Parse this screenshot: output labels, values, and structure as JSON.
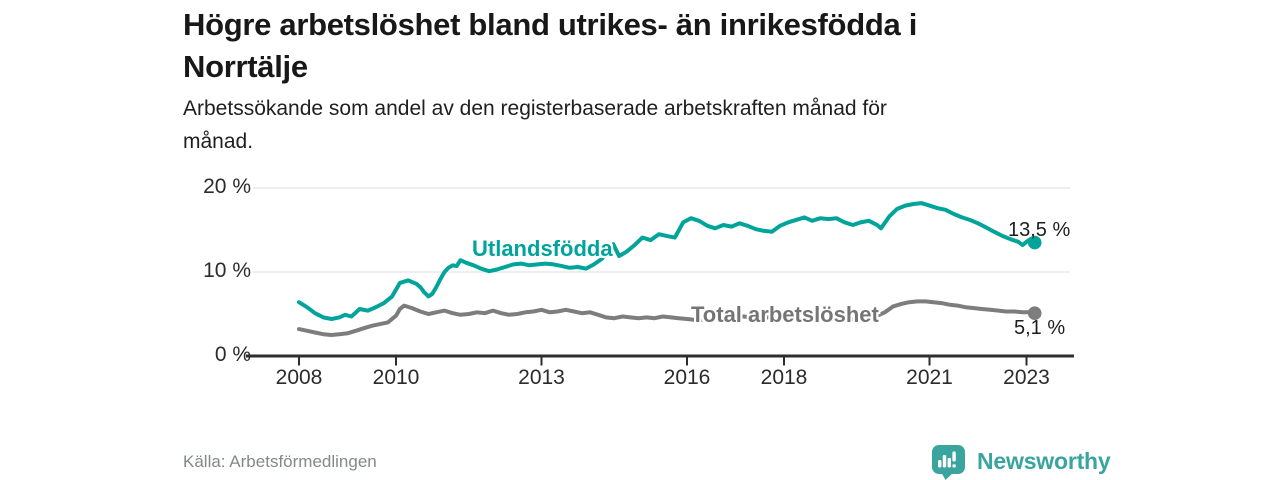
{
  "header": {
    "title_lines": [
      "Högre arbetslöshet bland utrikes- än inrikesfödda i",
      "Norrtälje"
    ],
    "subtitle_lines": [
      "Arbetssökande som andel av den registerbaserade arbetskraften månad för",
      "månad."
    ]
  },
  "chart_data": {
    "type": "line",
    "title": "Högre arbetslöshet bland utrikes- än inrikesfödda i Norrtälje",
    "subtitle": "Arbetssökande som andel av den registerbaserade arbetskraften månad för månad.",
    "unit": "%",
    "ylim": [
      0,
      20
    ],
    "xlim": [
      2007.6,
      2023.9
    ],
    "grid": "horizontal-light",
    "legend_position": "inline-labels",
    "yticks": [
      {
        "value": 0,
        "label": "0 %"
      },
      {
        "value": 10,
        "label": "10 %"
      },
      {
        "value": 20,
        "label": "20 %"
      }
    ],
    "xticks": [
      {
        "value": 2008,
        "label": "2008"
      },
      {
        "value": 2010,
        "label": "2010"
      },
      {
        "value": 2013,
        "label": "2013"
      },
      {
        "value": 2016,
        "label": "2016"
      },
      {
        "value": 2018,
        "label": "2018"
      },
      {
        "value": 2021,
        "label": "2021"
      },
      {
        "value": 2023,
        "label": "2023"
      }
    ],
    "colors": {
      "grid": "#dcdcdc",
      "axis": "#2e2e2e",
      "tick_text": "#2b2b2b",
      "value_text": "#1d1d1d"
    },
    "series": [
      {
        "name": "Utlandsfödda",
        "color": "#00a49a",
        "end_label": "13,5 %",
        "end_value": 13.5,
        "x": [
          2008.0,
          2008.17,
          2008.33,
          2008.5,
          2008.67,
          2008.83,
          2008.95,
          2009.08,
          2009.25,
          2009.42,
          2009.58,
          2009.75,
          2009.92,
          2010.08,
          2010.25,
          2010.42,
          2010.5,
          2010.58,
          2010.67,
          2010.75,
          2010.83,
          2010.92,
          2011.0,
          2011.08,
          2011.17,
          2011.25,
          2011.33,
          2011.45,
          2011.6,
          2011.75,
          2011.92,
          2012.08,
          2012.25,
          2012.42,
          2012.58,
          2012.75,
          2012.92,
          2013.08,
          2013.25,
          2013.42,
          2013.58,
          2013.75,
          2013.92,
          2014.08,
          2014.25,
          2014.38,
          2014.48,
          2014.6,
          2014.75,
          2014.92,
          2015.08,
          2015.25,
          2015.42,
          2015.58,
          2015.75,
          2015.92,
          2016.08,
          2016.25,
          2016.42,
          2016.58,
          2016.75,
          2016.92,
          2017.08,
          2017.25,
          2017.42,
          2017.58,
          2017.75,
          2017.92,
          2018.08,
          2018.25,
          2018.42,
          2018.58,
          2018.75,
          2018.92,
          2019.08,
          2019.25,
          2019.42,
          2019.58,
          2019.75,
          2019.92,
          2020.0,
          2020.17,
          2020.33,
          2020.5,
          2020.67,
          2020.83,
          2021.0,
          2021.17,
          2021.33,
          2021.5,
          2021.67,
          2021.83,
          2022.0,
          2022.17,
          2022.33,
          2022.5,
          2022.67,
          2022.83,
          2022.92,
          2023.0,
          2023.08,
          2023.17
        ],
        "values": [
          6.4,
          5.8,
          5.1,
          4.6,
          4.4,
          4.6,
          4.9,
          4.7,
          5.6,
          5.4,
          5.8,
          6.3,
          7.1,
          8.7,
          9.0,
          8.6,
          8.2,
          7.6,
          7.1,
          7.4,
          8.2,
          9.2,
          10.0,
          10.5,
          10.8,
          10.7,
          11.4,
          11.1,
          10.8,
          10.4,
          10.1,
          10.3,
          10.6,
          10.9,
          11.0,
          10.8,
          10.9,
          11.0,
          10.9,
          10.7,
          10.5,
          10.6,
          10.4,
          10.9,
          11.6,
          12.7,
          13.3,
          11.9,
          12.4,
          13.2,
          14.1,
          13.8,
          14.5,
          14.3,
          14.1,
          15.9,
          16.4,
          16.1,
          15.5,
          15.2,
          15.6,
          15.4,
          15.8,
          15.5,
          15.1,
          14.9,
          14.8,
          15.5,
          15.9,
          16.2,
          16.5,
          16.1,
          16.4,
          16.3,
          16.4,
          15.9,
          15.6,
          15.9,
          16.1,
          15.6,
          15.2,
          16.6,
          17.5,
          17.9,
          18.1,
          18.2,
          17.9,
          17.6,
          17.4,
          16.9,
          16.5,
          16.2,
          15.8,
          15.3,
          14.8,
          14.3,
          13.9,
          13.6,
          13.2,
          13.6,
          13.9,
          13.5
        ]
      },
      {
        "name": "Total arbetslöshet",
        "color": "#7d7d7d",
        "end_label": "5,1 %",
        "end_value": 5.1,
        "x": [
          2008.0,
          2008.17,
          2008.33,
          2008.5,
          2008.67,
          2008.83,
          2009.0,
          2009.17,
          2009.33,
          2009.5,
          2009.67,
          2009.83,
          2010.0,
          2010.08,
          2010.17,
          2010.33,
          2010.5,
          2010.67,
          2010.83,
          2011.0,
          2011.17,
          2011.33,
          2011.5,
          2011.67,
          2011.83,
          2012.0,
          2012.17,
          2012.33,
          2012.5,
          2012.67,
          2012.83,
          2013.0,
          2013.17,
          2013.33,
          2013.5,
          2013.67,
          2013.83,
          2014.0,
          2014.17,
          2014.33,
          2014.5,
          2014.67,
          2014.83,
          2015.0,
          2015.17,
          2015.33,
          2015.5,
          2015.67,
          2015.83,
          2016.0,
          2016.17,
          2016.33,
          2016.5,
          2016.67,
          2016.83,
          2017.0,
          2017.17,
          2017.33,
          2017.5,
          2017.67,
          2017.83,
          2018.0,
          2018.25,
          2018.5,
          2018.75,
          2019.0,
          2019.25,
          2019.5,
          2019.75,
          2019.92,
          2020.08,
          2020.25,
          2020.42,
          2020.58,
          2020.75,
          2020.92,
          2021.08,
          2021.25,
          2021.42,
          2021.58,
          2021.75,
          2021.92,
          2022.08,
          2022.25,
          2022.42,
          2022.58,
          2022.75,
          2022.92,
          2023.08,
          2023.17
        ],
        "values": [
          3.2,
          3.0,
          2.8,
          2.6,
          2.5,
          2.6,
          2.7,
          3.0,
          3.3,
          3.6,
          3.8,
          4.0,
          4.8,
          5.6,
          6.0,
          5.7,
          5.3,
          5.0,
          5.2,
          5.4,
          5.1,
          4.9,
          5.0,
          5.2,
          5.1,
          5.4,
          5.1,
          4.9,
          5.0,
          5.2,
          5.3,
          5.5,
          5.2,
          5.3,
          5.5,
          5.3,
          5.1,
          5.2,
          4.9,
          4.6,
          4.5,
          4.7,
          4.6,
          4.5,
          4.6,
          4.5,
          4.7,
          4.6,
          4.5,
          4.4,
          4.3,
          4.3,
          4.5,
          4.7,
          4.6,
          4.8,
          4.7,
          4.6,
          4.5,
          4.6,
          4.7,
          4.6,
          4.5,
          4.4,
          4.5,
          4.4,
          4.3,
          4.4,
          4.6,
          4.8,
          5.2,
          5.9,
          6.2,
          6.4,
          6.5,
          6.5,
          6.4,
          6.3,
          6.1,
          6.0,
          5.8,
          5.7,
          5.6,
          5.5,
          5.4,
          5.3,
          5.3,
          5.2,
          5.2,
          5.1
        ]
      }
    ]
  },
  "footer": {
    "source": "Källa: Arbetsförmedlingen",
    "brand": "Newsworthy",
    "brand_color": "#3aa49f"
  }
}
